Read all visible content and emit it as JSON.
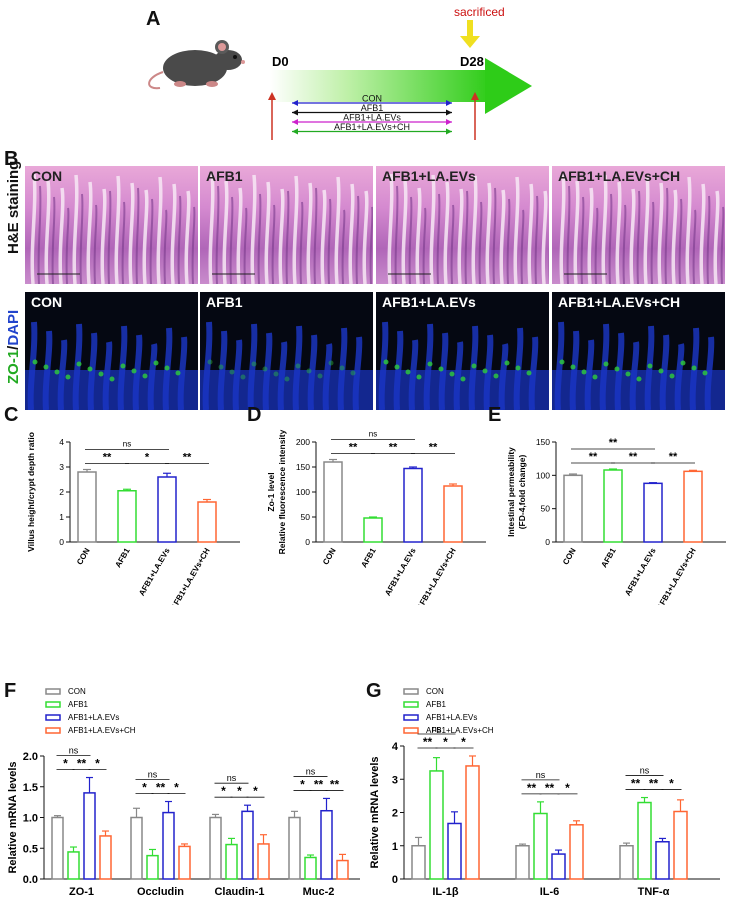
{
  "panel_a": {
    "letter": "A",
    "sacrificed": "sacrificed",
    "day_start": "D0",
    "day_end": "D28",
    "groups": [
      "CON",
      "AFB1",
      "AFB1+LA.EVs",
      "AFB1+LA.EVs+CH"
    ],
    "group_colors": [
      "#2222cc",
      "#111111",
      "#cc22cc",
      "#22aa22"
    ]
  },
  "panel_b": {
    "letter": "B",
    "row1_label": "H&E staining",
    "row2_label_a": "ZO-1",
    "row2_label_sep": "/",
    "row2_label_b": "DAPI",
    "tiles": [
      "CON",
      "AFB1",
      "AFB1+LA.EVs",
      "AFB1+LA.EVs+CH"
    ]
  },
  "chart_data": [
    {
      "panel": "C",
      "type": "bar",
      "ylabel": "Villus height/crypt depth ratio",
      "ylim": [
        0,
        4
      ],
      "yticks": [
        0,
        1,
        2,
        3,
        4
      ],
      "categories": [
        "CON",
        "AFB1",
        "AFB1+LA.EVs",
        "AFB1+LA.EVs+CH"
      ],
      "values": [
        2.8,
        2.05,
        2.6,
        1.6
      ],
      "errors": [
        0.1,
        0.06,
        0.15,
        0.1
      ],
      "colors": [
        "#888888",
        "#33dd33",
        "#2222cc",
        "#ff6633"
      ],
      "significance": [
        "ns",
        "**",
        "*",
        "**"
      ]
    },
    {
      "panel": "D",
      "type": "bar",
      "ylabel": "Zo-1 level Relative fluorescence intensity",
      "ylabel_line1": "Zo-1 level",
      "ylabel_line2": "Relative fluorescence intensity",
      "ylim": [
        0,
        200
      ],
      "yticks": [
        0,
        50,
        100,
        150,
        200
      ],
      "categories": [
        "CON",
        "AFB1",
        "AFB1+LA.EVs",
        "AFB1+LA.EVs+CH"
      ],
      "values": [
        160,
        48,
        147,
        112
      ],
      "errors": [
        5,
        2,
        3,
        4
      ],
      "colors": [
        "#888888",
        "#33dd33",
        "#2222cc",
        "#ff6633"
      ],
      "significance": [
        "ns",
        "**",
        "**",
        "**"
      ]
    },
    {
      "panel": "E",
      "type": "bar",
      "ylabel": "Intestinal permeability (FD-4,fold change)",
      "ylabel_line1": "Intestinal permeability",
      "ylabel_line2": "(FD-4,fold change)",
      "ylim": [
        0,
        150
      ],
      "yticks": [
        0,
        50,
        100,
        150
      ],
      "categories": [
        "CON",
        "AFB1",
        "AFB1+LA.EVs",
        "AFB1+LA.EVs+CH"
      ],
      "values": [
        100,
        108,
        88,
        106
      ],
      "errors": [
        2,
        1.5,
        1,
        1.5
      ],
      "colors": [
        "#888888",
        "#33dd33",
        "#2222cc",
        "#ff6633"
      ],
      "significance": [
        "**",
        "**",
        "**",
        "**"
      ]
    },
    {
      "panel": "F",
      "type": "bar",
      "ylabel": "Relative mRNA levels",
      "ylim": [
        0,
        2.0
      ],
      "yticks": [
        "0.0",
        "0.5",
        "1.0",
        "1.5",
        "2.0"
      ],
      "categories": [
        "ZO-1",
        "Occludin",
        "Claudin-1",
        "Muc-2"
      ],
      "series": [
        {
          "name": "CON",
          "values": [
            1.0,
            1.0,
            1.0,
            1.0
          ],
          "errors": [
            0.03,
            0.15,
            0.05,
            0.1
          ]
        },
        {
          "name": "AFB1",
          "values": [
            0.44,
            0.38,
            0.56,
            0.35
          ],
          "errors": [
            0.08,
            0.1,
            0.1,
            0.04
          ]
        },
        {
          "name": "AFB1+LA.EVs",
          "values": [
            1.4,
            1.08,
            1.1,
            1.11
          ],
          "errors": [
            0.25,
            0.18,
            0.1,
            0.2
          ]
        },
        {
          "name": "AFB1+LA.EVs+CH",
          "values": [
            0.7,
            0.53,
            0.57,
            0.3
          ],
          "errors": [
            0.08,
            0.04,
            0.15,
            0.1
          ]
        }
      ],
      "colors": [
        "#888888",
        "#33dd33",
        "#2222cc",
        "#ff6633"
      ],
      "significance": [
        [
          "ns",
          "*",
          "**",
          "*"
        ],
        [
          "ns",
          "*",
          "**",
          "*"
        ],
        [
          "ns",
          "*",
          "*",
          "*"
        ],
        [
          "ns",
          "*",
          "**",
          "**"
        ]
      ],
      "legend_position": "top-left"
    },
    {
      "panel": "G",
      "type": "bar",
      "ylabel": "Relative mRNA levels",
      "ylim": [
        0,
        4
      ],
      "yticks": [
        0,
        1,
        2,
        3,
        4
      ],
      "categories": [
        "IL-1β",
        "IL-6",
        "TNF-α"
      ],
      "series": [
        {
          "name": "CON",
          "values": [
            1.0,
            1.0,
            1.0
          ],
          "errors": [
            0.25,
            0.05,
            0.08
          ]
        },
        {
          "name": "AFB1",
          "values": [
            3.25,
            1.97,
            2.3
          ],
          "errors": [
            0.4,
            0.35,
            0.15
          ]
        },
        {
          "name": "AFB1+LA.EVs",
          "values": [
            1.67,
            0.75,
            1.12
          ],
          "errors": [
            0.35,
            0.12,
            0.1
          ]
        },
        {
          "name": "AFB1+LA.EVs+CH",
          "values": [
            3.4,
            1.63,
            2.03
          ],
          "errors": [
            0.3,
            0.12,
            0.35
          ]
        }
      ],
      "colors": [
        "#888888",
        "#33dd33",
        "#2222cc",
        "#ff6633"
      ],
      "significance": [
        [
          "ns",
          "**",
          "*",
          "*"
        ],
        [
          "ns",
          "**",
          "**",
          "*"
        ],
        [
          "ns",
          "**",
          "**",
          "*"
        ]
      ],
      "legend_position": "top-left"
    }
  ]
}
